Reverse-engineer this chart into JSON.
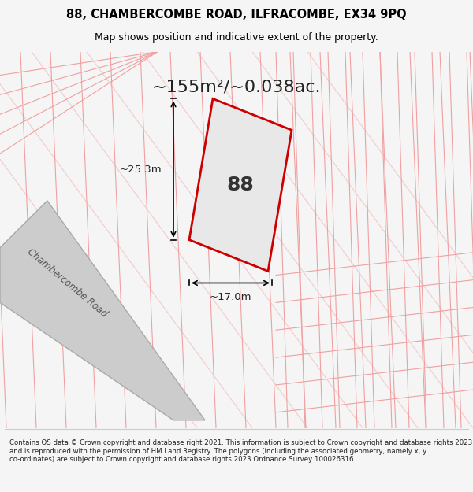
{
  "title_line1": "88, CHAMBERCOMBE ROAD, ILFRACOMBE, EX34 9PQ",
  "title_line2": "Map shows position and indicative extent of the property.",
  "area_text": "~155m²/~0.038ac.",
  "property_number": "88",
  "dim_height": "~25.3m",
  "dim_width": "~17.0m",
  "road_label": "Chambercombe Road",
  "footer_text": "Contains OS data © Crown copyright and database right 2021. This information is subject to Crown copyright and database rights 2023 and is reproduced with the permission of HM Land Registry. The polygons (including the associated geometry, namely x, y co-ordinates) are subject to Crown copyright and database rights 2023 Ordnance Survey 100026316.",
  "bg_color": "#f5f5f5",
  "map_bg": "#ffffff",
  "road_color": "#d0d0d0",
  "plot_fill": "#e8e8e8",
  "plot_edge": "#cc0000",
  "grid_color": "#f0a0a0",
  "title_bg": "#ffffff",
  "footer_bg": "#ffffff"
}
